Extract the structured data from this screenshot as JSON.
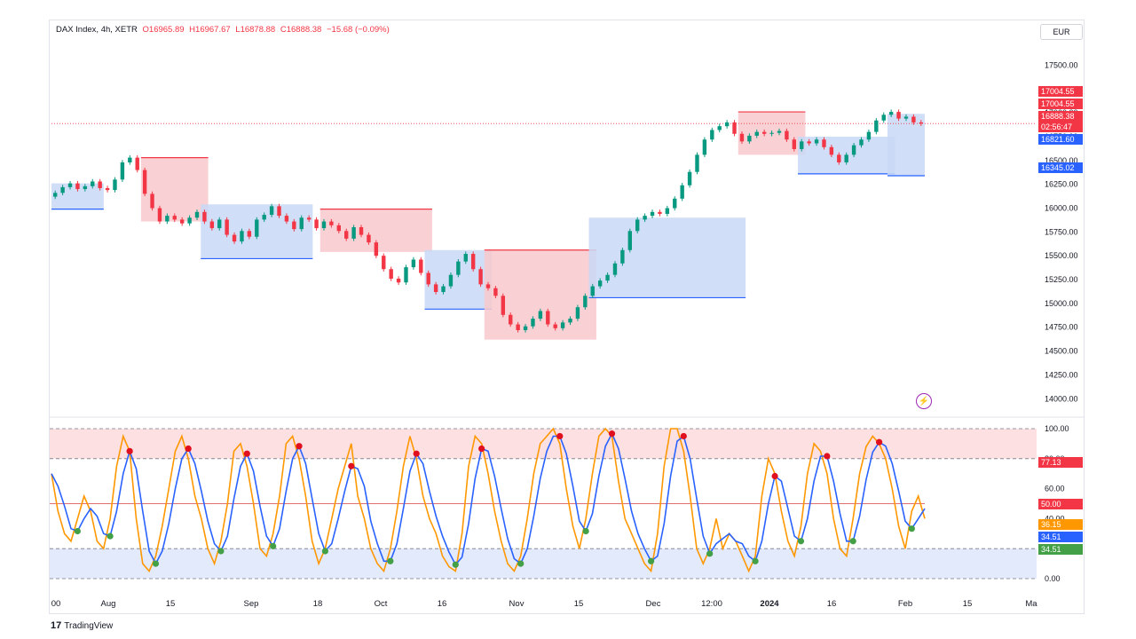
{
  "header": {
    "symbol": "DAX Index, 4h, XETR",
    "open": "O16965.89",
    "high": "H16967.67",
    "low": "L16878.88",
    "close": "C16888.38",
    "change": "−15.68 (−0.09%)"
  },
  "currency_button": "EUR",
  "logo_text": "TradingView",
  "price_tags": {
    "tag1": "17004.55",
    "tag2": "17004.55",
    "tag3": "16888.38",
    "countdown": "02:56:47",
    "tag4": "16821.60",
    "tag5": "16345.02"
  },
  "osc_tags": {
    "upper": "77.13",
    "mid": "50.00",
    "k": "36.15",
    "d1": "34.51",
    "d2": "34.51"
  },
  "colors": {
    "up": "#089981",
    "down": "#f23645",
    "resistance": "#f23645",
    "support": "#2962ff",
    "fill_red": "#f8c9cd",
    "fill_blue": "#c9d8f6",
    "osc_k": "#ff9800",
    "osc_d": "#2962ff",
    "marker_high": "#e0101f",
    "marker_low": "#43a047"
  },
  "chart_data": [
    {
      "type": "candlestick",
      "title": "DAX Index, 4h, XETR",
      "y_ticks": [
        "17500.00",
        "17250.00",
        "17000.00",
        "16750.00",
        "16500.00",
        "16250.00",
        "16000.00",
        "15750.00",
        "15500.00",
        "15250.00",
        "15000.00",
        "14750.00",
        "14500.00",
        "14250.00",
        "14000.00"
      ],
      "ylim": [
        13900,
        17700
      ],
      "x_ticks": [
        "00",
        "Aug",
        "15",
        "Sep",
        "18",
        "Oct",
        "16",
        "Nov",
        "15",
        "Dec",
        "12:00",
        "2024",
        "16",
        "Feb",
        "15",
        "Ma"
      ],
      "close_path": [
        [
          16160,
          16220,
          16260,
          16200,
          16230,
          16280,
          16210,
          16190,
          16300,
          16480,
          16530,
          16400,
          16150,
          16000,
          15860,
          15920,
          15880,
          15840,
          15900,
          15960,
          15860,
          15790,
          15880,
          15720,
          15650,
          15760,
          15700,
          15880,
          15930,
          16020,
          15920,
          15860,
          15780,
          15900,
          15880,
          15790,
          15860,
          15820,
          15760,
          15680,
          15800,
          15720,
          15640,
          15500,
          15360,
          15260,
          15220,
          15380,
          15460,
          15320,
          15200,
          15120,
          15180,
          15300,
          15440,
          15520,
          15360,
          15200,
          15160,
          15080,
          14880,
          14780,
          14720,
          14760,
          14840,
          14920,
          14780,
          14740,
          14800,
          14840,
          14960,
          15080,
          15180,
          15240,
          15300,
          15420,
          15560,
          15760,
          15880,
          15920,
          15960,
          15940,
          16000,
          16100,
          16240,
          16380,
          16560,
          16720,
          16820,
          16860,
          16900,
          16780,
          16700,
          16760,
          16800,
          16780,
          16790,
          16810,
          16720,
          16620,
          16700,
          16680,
          16720,
          16640,
          16560,
          16480,
          16560,
          16660,
          16720,
          16800,
          16920,
          16980,
          17010,
          16940,
          16960,
          16900,
          16888
        ]
      ]
    },
    {
      "type": "line",
      "title": "",
      "y_ticks": [
        "100.00",
        "80.00",
        "60.00",
        "40.00",
        "20.00",
        "0.00"
      ],
      "ylim": [
        0,
        100
      ],
      "levels": [
        80,
        50,
        20
      ],
      "series": [
        {
          "values": [
            70,
            45,
            30,
            25,
            40,
            55,
            45,
            25,
            20,
            40,
            75,
            95,
            85,
            40,
            10,
            5,
            15,
            35,
            60,
            85,
            95,
            80,
            55,
            40,
            20,
            10,
            25,
            50,
            85,
            90,
            75,
            50,
            20,
            15,
            30,
            55,
            90,
            95,
            80,
            55,
            25,
            10,
            20,
            40,
            60,
            75,
            90,
            55,
            40,
            20,
            10,
            5,
            20,
            45,
            75,
            95,
            80,
            55,
            40,
            30,
            15,
            8,
            5,
            30,
            75,
            95,
            90,
            70,
            45,
            25,
            10,
            5,
            15,
            40,
            70,
            90,
            95,
            100,
            90,
            60,
            35,
            20,
            40,
            70,
            95,
            100,
            95,
            65,
            40,
            30,
            20,
            10,
            5,
            30,
            75,
            100,
            100,
            85,
            55,
            20,
            10,
            20,
            40,
            20,
            30,
            25,
            15,
            5,
            15,
            55,
            80,
            70,
            45,
            25,
            15,
            35,
            70,
            90,
            85,
            70,
            40,
            20,
            15,
            40,
            70,
            88,
            95,
            90,
            80,
            60,
            35,
            20,
            45,
            55,
            40
          ]
        }
      ]
    }
  ]
}
